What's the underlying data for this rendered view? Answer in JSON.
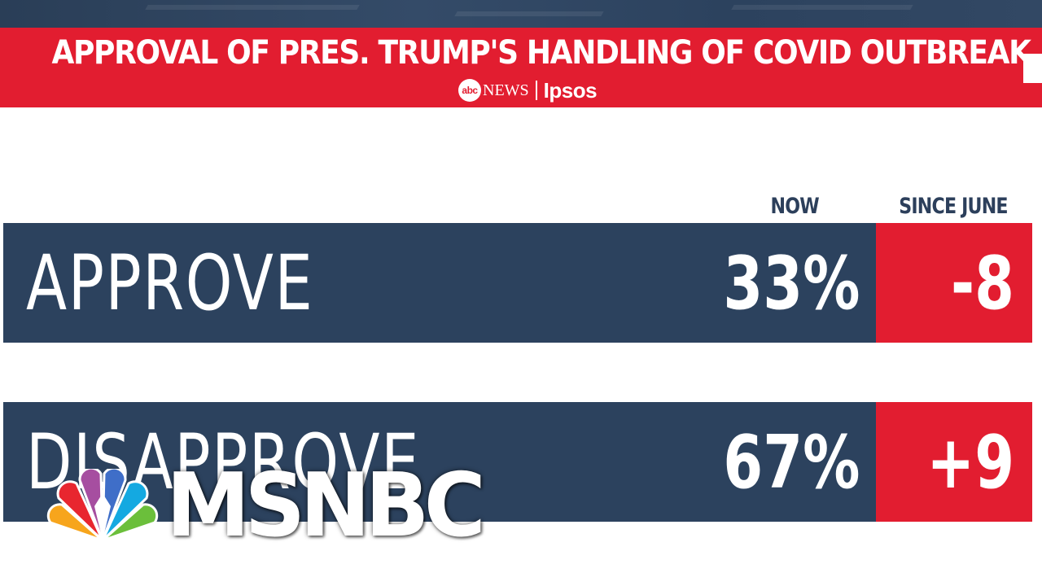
{
  "banner": {
    "title": "APPROVAL OF PRES. TRUMP'S HANDLING OF COVID OUTBREAK",
    "abc_text": "abc",
    "news_text": "NEWS",
    "ipsos_text": "Ipsos"
  },
  "columns": {
    "now": "NOW",
    "since": "SINCE JUNE"
  },
  "rows": [
    {
      "label": "APPROVE",
      "now": "33%",
      "change": "-8"
    },
    {
      "label": "DISAPPROVE",
      "now": "67%",
      "change": "+9"
    }
  ],
  "watermark": {
    "text": "MSNBC",
    "icon": "peacock-icon"
  },
  "colors": {
    "banner_red": "#e21d30",
    "navy": "#2c425e",
    "white": "#ffffff"
  }
}
